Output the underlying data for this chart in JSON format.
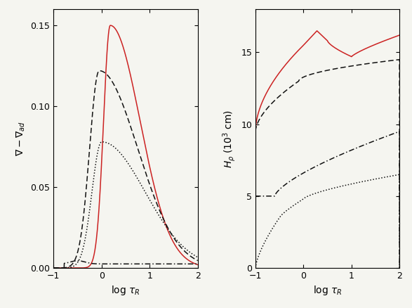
{
  "xlim": [
    -1,
    2
  ],
  "left_ylim": [
    0,
    0.16
  ],
  "right_ylim": [
    0,
    18
  ],
  "left_yticks": [
    0,
    0.05,
    0.1,
    0.15
  ],
  "right_yticks": [
    0,
    5,
    10,
    15
  ],
  "xticks": [
    -1,
    0,
    1,
    2
  ],
  "xlabel": "log $\\tau_R$",
  "left_ylabel": "$\\nabla - \\nabla_{ad}$",
  "right_ylabel": "$H_\\rho$ ($10^3$ cm)",
  "color_red": "#cc2222",
  "color_black": "#111111",
  "line_width": 1.1,
  "bg_color": "#f5f5f0"
}
